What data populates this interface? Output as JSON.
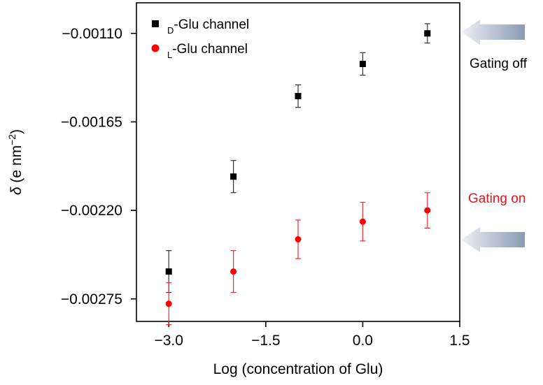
{
  "chart_data": {
    "type": "scatter",
    "title": "",
    "xlabel": "Log (concentration of Glu)",
    "ylabel_symbol": "δ",
    "ylabel_unit_prefix": " (e nm",
    "ylabel_exponent": "−2",
    "ylabel_suffix": ")",
    "xlim": [
      -3.5,
      1.5
    ],
    "ylim": [
      -0.00289,
      -0.00091
    ],
    "xticks": [
      -3.0,
      -1.5,
      0.0,
      1.5
    ],
    "xtick_labels": [
      "−3.0",
      "−1.5",
      "0.0",
      "1.5"
    ],
    "yticks": [
      -0.0011,
      -0.00165,
      -0.0022,
      -0.00275
    ],
    "ytick_labels": [
      "−0.00110",
      "−0.00165",
      "−0.00220",
      "−0.00275"
    ],
    "grid": false,
    "legend_position": "top-left",
    "series": [
      {
        "name_sub": "D",
        "name_main": "-Glu channel",
        "marker": "square",
        "color": "#000000",
        "errorbar_color": "#333333",
        "x": [
          -3,
          -2,
          -1,
          0,
          1
        ],
        "y": [
          -0.00258,
          -0.00199,
          -0.00149,
          -0.00129,
          -0.0011
        ],
        "yerr": [
          0.00013,
          0.0001,
          7e-05,
          7e-05,
          6e-05
        ]
      },
      {
        "name_sub": "L",
        "name_main": "-Glu channel",
        "marker": "circle",
        "color": "#ff0000",
        "errorbar_color": "#e83030",
        "x": [
          -3,
          -2,
          -1,
          0,
          1
        ],
        "y": [
          -0.00278,
          -0.00258,
          -0.00238,
          -0.00227,
          -0.0022
        ],
        "yerr": [
          0.00013,
          0.00013,
          0.00012,
          0.00012,
          0.00011
        ]
      }
    ],
    "annotations": [
      {
        "text": "Gating off",
        "color": "#000000",
        "target_y": -0.0011
      },
      {
        "text": "Gating on",
        "color": "#e8141e",
        "target_y": -0.00238
      }
    ]
  }
}
